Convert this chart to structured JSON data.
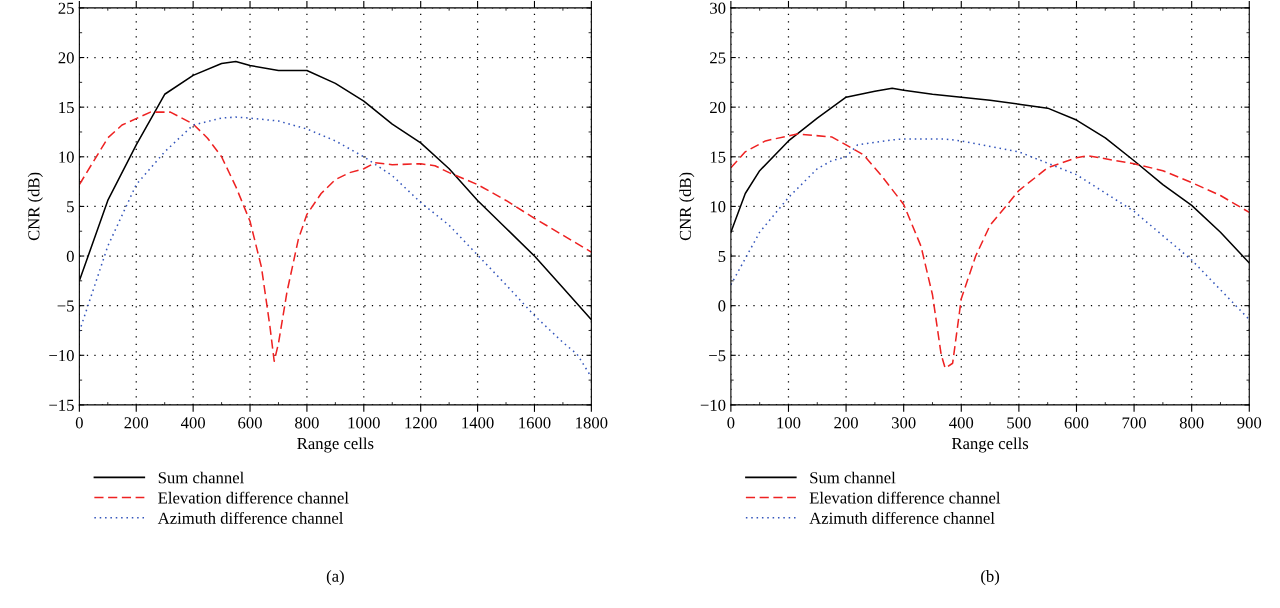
{
  "chart_data": [
    {
      "type": "line",
      "xlabel": "Range cells",
      "ylabel": "CNR (dB)",
      "xlim": [
        0,
        1800
      ],
      "ylim": [
        -15,
        25
      ],
      "xticks": [
        0,
        200,
        400,
        600,
        800,
        1000,
        1200,
        1400,
        1600,
        1800
      ],
      "yticks": [
        -15,
        -10,
        -5,
        0,
        5,
        10,
        15,
        20,
        25
      ],
      "grid": true,
      "legend": "bottom left",
      "annotations": [
        "(a)"
      ],
      "series": [
        {
          "name": "Sum channel",
          "color": "#000000",
          "line_style": "solid",
          "x": [
            0,
            100,
            200,
            300,
            400,
            500,
            550,
            600,
            700,
            800,
            900,
            1000,
            1100,
            1200,
            1300,
            1400,
            1500,
            1600,
            1700,
            1800
          ],
          "values": [
            -2.5,
            5.6,
            11.2,
            16.3,
            18.2,
            19.4,
            19.6,
            19.2,
            18.7,
            18.7,
            17.4,
            15.6,
            13.3,
            11.4,
            8.8,
            5.6,
            2.8,
            0,
            -3.2,
            -6.4
          ]
        },
        {
          "name": "Elevation difference channel",
          "color": "#ee2222",
          "line_style": "dashed",
          "x": [
            0,
            100,
            150,
            250,
            320,
            400,
            450,
            500,
            550,
            600,
            640,
            670,
            685,
            700,
            730,
            770,
            800,
            850,
            900,
            950,
            1000,
            1040,
            1100,
            1200,
            1250,
            1300,
            1400,
            1500,
            1600,
            1700,
            1800
          ],
          "values": [
            7.2,
            11.9,
            13.2,
            14.5,
            14.5,
            13.3,
            11.9,
            10,
            7,
            3.5,
            -1.1,
            -7.1,
            -10.6,
            -8.8,
            -3.6,
            1.7,
            4.2,
            6.3,
            7.7,
            8.4,
            8.8,
            9.4,
            9.2,
            9.3,
            9.1,
            8.4,
            7.2,
            5.6,
            3.8,
            2.1,
            0.4
          ]
        },
        {
          "name": "Azimuth difference channel",
          "color": "#3355bb",
          "line_style": "dotted",
          "x": [
            0,
            100,
            200,
            300,
            400,
            500,
            550,
            600,
            700,
            800,
            900,
            1000,
            1100,
            1200,
            1300,
            1400,
            1500,
            1600,
            1700,
            1750,
            1800
          ],
          "values": [
            -7.6,
            1.0,
            7.2,
            10.5,
            13.2,
            13.9,
            14.0,
            13.9,
            13.6,
            12.8,
            11.6,
            10,
            8.1,
            5.4,
            3.1,
            0.1,
            -2.9,
            -6,
            -8.7,
            -9.9,
            -12.2
          ]
        }
      ]
    },
    {
      "type": "line",
      "xlabel": "Range cells",
      "ylabel": "CNR (dB)",
      "xlim": [
        0,
        900
      ],
      "ylim": [
        -10,
        30
      ],
      "xticks": [
        0,
        100,
        200,
        300,
        400,
        500,
        600,
        700,
        800,
        900
      ],
      "yticks": [
        -10,
        -5,
        0,
        5,
        10,
        15,
        20,
        25,
        30
      ],
      "grid": true,
      "legend": "bottom left",
      "annotations": [
        "(b)"
      ],
      "series": [
        {
          "name": "Sum channel",
          "color": "#000000",
          "line_style": "solid",
          "x": [
            0,
            25,
            50,
            100,
            150,
            200,
            250,
            280,
            300,
            350,
            400,
            450,
            500,
            550,
            600,
            650,
            700,
            750,
            800,
            850,
            900
          ],
          "values": [
            7.4,
            11.3,
            13.6,
            16.6,
            18.9,
            21.0,
            21.6,
            21.9,
            21.7,
            21.3,
            21.0,
            20.7,
            20.3,
            19.9,
            18.7,
            16.9,
            14.6,
            12.2,
            10.1,
            7.4,
            4.3
          ]
        },
        {
          "name": "Elevation difference channel",
          "color": "#ee2222",
          "line_style": "dashed",
          "x": [
            0,
            25,
            60,
            115,
            175,
            200,
            230,
            260,
            300,
            330,
            350,
            365,
            372,
            385,
            400,
            425,
            450,
            500,
            550,
            600,
            620,
            700,
            750,
            800,
            850,
            900
          ],
          "values": [
            13.9,
            15.5,
            16.6,
            17.3,
            17.0,
            16.2,
            15.2,
            13.2,
            10.2,
            6.0,
            1.1,
            -4.9,
            -6.3,
            -5.8,
            0.7,
            5.0,
            8.1,
            11.6,
            13.9,
            14.9,
            15.1,
            14.3,
            13.6,
            12.4,
            11.1,
            9.4
          ]
        },
        {
          "name": "Azimuth difference channel",
          "color": "#3355bb",
          "line_style": "dotted",
          "x": [
            0,
            50,
            100,
            150,
            175,
            200,
            220,
            280,
            300,
            370,
            400,
            500,
            600,
            700,
            800,
            900
          ],
          "values": [
            2.1,
            7.4,
            10.9,
            13.8,
            14.6,
            15.0,
            16.2,
            16.7,
            16.8,
            16.8,
            16.6,
            15.5,
            13.2,
            9.5,
            4.6,
            -1.4
          ]
        }
      ]
    }
  ]
}
